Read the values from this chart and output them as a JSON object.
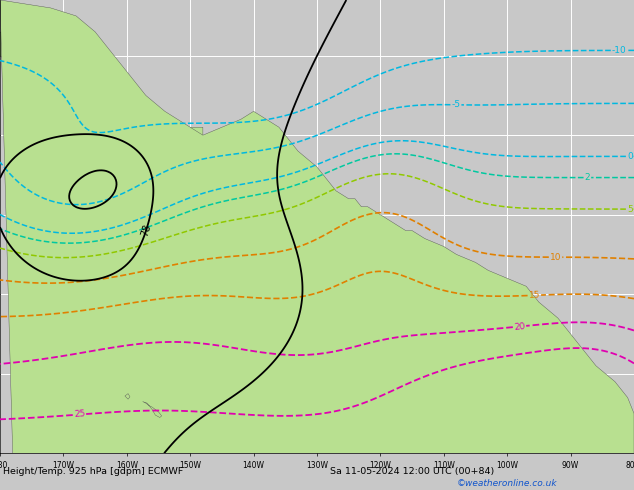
{
  "figsize": [
    6.34,
    4.9
  ],
  "dpi": 100,
  "bg_color": "#c8c8c8",
  "ocean_color": "#c8c8c8",
  "land_green": "#b8e090",
  "land_green2": "#c8f0a0",
  "grid_color": "#ffffff",
  "bottom_label": "Height/Temp. 925 hPa [gdpm] ECMWF",
  "bottom_right": "Sa 11-05-2024 12:00 UTC (00+84)",
  "watermark": "©weatheronline.co.uk",
  "contour_colors": {
    "black": "#000000",
    "cyan": "#00b8e0",
    "teal": "#00c8a0",
    "lime": "#90c800",
    "orange": "#e08000",
    "red": "#e02000",
    "magenta": "#e000b0"
  },
  "lon_min": -180,
  "lon_max": -80,
  "lat_min": 15,
  "lat_max": 72,
  "tick_lon_step": 10,
  "tick_lat_step": 10
}
